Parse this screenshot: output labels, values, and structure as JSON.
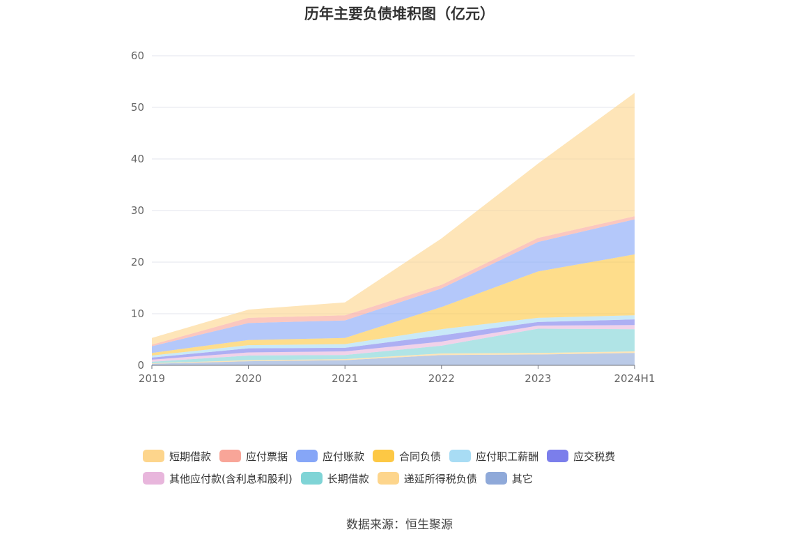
{
  "chart_data": {
    "type": "area",
    "stacked": true,
    "title": "历年主要负债堆积图（亿元）",
    "categories": [
      "2019",
      "2020",
      "2021",
      "2022",
      "2023",
      "2024H1"
    ],
    "ylim": [
      0,
      60
    ],
    "yticks": [
      0,
      10,
      20,
      30,
      40,
      50,
      60
    ],
    "grid": true,
    "legend_position": "bottom",
    "series": [
      {
        "name": "其它",
        "color": "#8fa9d9",
        "values": [
          0.3,
          0.8,
          1.0,
          2.0,
          2.1,
          2.4
        ]
      },
      {
        "name": "递延所得税负债",
        "color": "#fdd58c",
        "values": [
          0.1,
          0.2,
          0.2,
          0.3,
          0.3,
          0.3
        ]
      },
      {
        "name": "长期借款",
        "color": "#7fd4d6",
        "values": [
          0.3,
          0.9,
          0.8,
          1.5,
          4.7,
          4.3
        ]
      },
      {
        "name": "其他应付款(含利息和股利)",
        "color": "#e8b6dc",
        "values": [
          0.4,
          0.6,
          0.7,
          0.8,
          0.6,
          0.8
        ]
      },
      {
        "name": "应交税费",
        "color": "#7b7eeb",
        "values": [
          0.4,
          0.8,
          0.7,
          1.2,
          0.7,
          1.1
        ]
      },
      {
        "name": "应付职工薪酬",
        "color": "#a8dcf4",
        "values": [
          0.4,
          0.6,
          0.7,
          1.2,
          0.8,
          0.8
        ]
      },
      {
        "name": "合同负债",
        "color": "#fdc844",
        "values": [
          0.5,
          1.0,
          1.2,
          4.3,
          9.0,
          11.8
        ]
      },
      {
        "name": "应付账款",
        "color": "#86a6f7",
        "values": [
          1.3,
          3.3,
          3.4,
          3.6,
          5.7,
          6.8
        ]
      },
      {
        "name": "应付票据",
        "color": "#f8a598",
        "values": [
          0.3,
          1.0,
          1.0,
          0.7,
          0.8,
          0.6
        ]
      },
      {
        "name": "短期借款",
        "color": "#fdd58c",
        "values": [
          1.3,
          1.6,
          2.5,
          9.0,
          14.4,
          23.9
        ]
      }
    ]
  },
  "legend": {
    "row1": [
      {
        "label": "短期借款",
        "color": "#fdd58c"
      },
      {
        "label": "应付票据",
        "color": "#f8a598"
      },
      {
        "label": "应付账款",
        "color": "#86a6f7"
      },
      {
        "label": "合同负债",
        "color": "#fdc844"
      },
      {
        "label": "应付职工薪酬",
        "color": "#a8dcf4"
      },
      {
        "label": "应交税费",
        "color": "#7b7eeb"
      }
    ],
    "row2": [
      {
        "label": "其他应付款(含利息和股利)",
        "color": "#e8b6dc"
      },
      {
        "label": "长期借款",
        "color": "#7fd4d6"
      },
      {
        "label": "递延所得税负债",
        "color": "#fdd58c"
      },
      {
        "label": "其它",
        "color": "#8fa9d9"
      }
    ]
  },
  "source_text": "数据来源：恒生聚源"
}
